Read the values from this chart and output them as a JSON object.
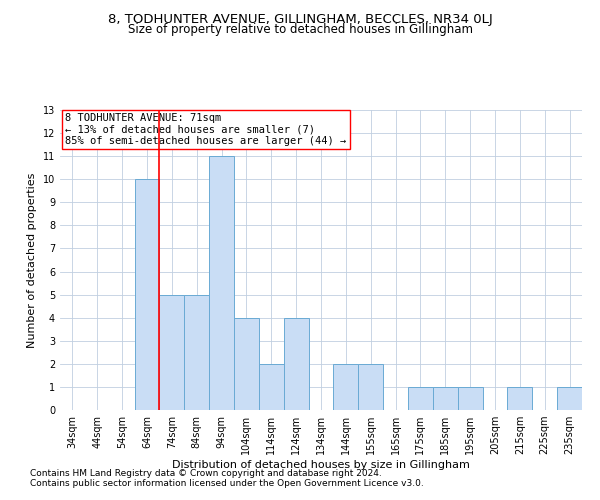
{
  "title": "8, TODHUNTER AVENUE, GILLINGHAM, BECCLES, NR34 0LJ",
  "subtitle": "Size of property relative to detached houses in Gillingham",
  "xlabel": "Distribution of detached houses by size in Gillingham",
  "ylabel": "Number of detached properties",
  "categories": [
    "34sqm",
    "44sqm",
    "54sqm",
    "64sqm",
    "74sqm",
    "84sqm",
    "94sqm",
    "104sqm",
    "114sqm",
    "124sqm",
    "134sqm",
    "144sqm",
    "155sqm",
    "165sqm",
    "175sqm",
    "185sqm",
    "195sqm",
    "205sqm",
    "215sqm",
    "225sqm",
    "235sqm"
  ],
  "values": [
    0,
    0,
    0,
    10,
    5,
    5,
    11,
    4,
    2,
    4,
    0,
    2,
    2,
    0,
    1,
    1,
    1,
    0,
    1,
    0,
    1
  ],
  "bar_color": "#c9ddf5",
  "bar_edge_color": "#6aaad4",
  "red_line_x": 3.5,
  "annotation_line1": "8 TODHUNTER AVENUE: 71sqm",
  "annotation_line2": "← 13% of detached houses are smaller (7)",
  "annotation_line3": "85% of semi-detached houses are larger (44) →",
  "ylim_max": 13,
  "yticks": [
    0,
    1,
    2,
    3,
    4,
    5,
    6,
    7,
    8,
    9,
    10,
    11,
    12,
    13
  ],
  "footnote1": "Contains HM Land Registry data © Crown copyright and database right 2024.",
  "footnote2": "Contains public sector information licensed under the Open Government Licence v3.0.",
  "background_color": "#ffffff",
  "grid_color": "#c0cfe0",
  "title_fontsize": 9.5,
  "subtitle_fontsize": 8.5,
  "ylabel_fontsize": 8,
  "xlabel_fontsize": 8,
  "tick_fontsize": 7,
  "annot_fontsize": 7.5,
  "footnote_fontsize": 6.5
}
